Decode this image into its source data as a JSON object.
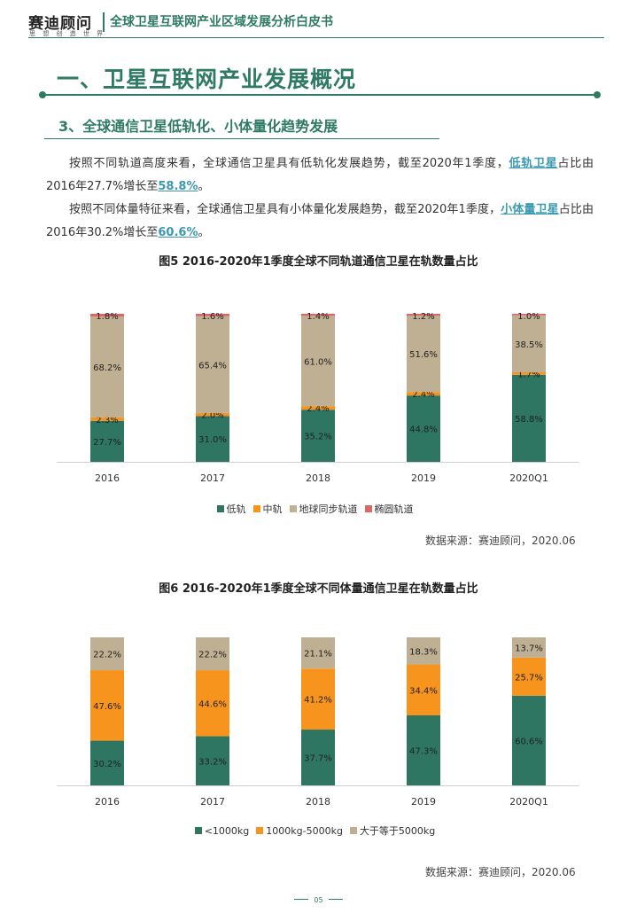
{
  "header": {
    "logo": "赛迪顾问",
    "logo_sub": "思 想 创 造 世 界",
    "doc_title": "全球卫星互联网产业区域发展分析白皮书"
  },
  "section": {
    "title": "一、卫星互联网产业发展概况",
    "subtitle": "3、全球通信卫星低轨化、小体量化趋势发展"
  },
  "paragraphs": [
    {
      "pre": "按照不同轨道高度来看，全球通信卫星具有低轨化发展趋势，截至2020年1季度，",
      "hl1": "低轨卫星",
      "mid": "占比由2016年27.7%增长至",
      "hl2": "58.8%",
      "post": "。"
    },
    {
      "pre": "按照不同体量特征来看，全球通信卫星具有小体量化发展趋势，截至2020年1季度，",
      "hl1": "小体量卫星",
      "mid": "占比由2016年30.2%增长至",
      "hl2": "60.6%",
      "post": "。"
    }
  ],
  "figures": [
    {
      "title": "图5  2016-2020年1季度全球不同轨道通信卫星在轨数量占比",
      "source": "数据来源：赛迪顾问，2020.06"
    },
    {
      "title": "图6  2016-2020年1季度全球不同体量通信卫星在轨数量占比",
      "source": "数据来源：赛迪顾问，2020.06"
    }
  ],
  "page_number": "05",
  "chart_data": [
    {
      "type": "bar",
      "stacked": true,
      "categories": [
        "2016",
        "2017",
        "2018",
        "2019",
        "2020Q1"
      ],
      "series": [
        {
          "name": "低轨",
          "color": "#2e7562",
          "values": [
            27.7,
            31.0,
            35.2,
            44.8,
            58.8
          ],
          "labels": [
            "27.7%",
            "31.0%",
            "35.2%",
            "44.8%",
            "58.8%"
          ]
        },
        {
          "name": "中轨",
          "color": "#f7941d",
          "values": [
            2.3,
            2.0,
            2.4,
            2.4,
            1.7
          ],
          "labels": [
            "2.3%",
            "2.0%",
            "2.4%",
            "2.4%",
            "1.7%"
          ]
        },
        {
          "name": "地球同步轨道",
          "color": "#bfb094",
          "values": [
            68.2,
            65.4,
            61.0,
            51.6,
            38.5
          ],
          "labels": [
            "68.2%",
            "65.4%",
            "61.0%",
            "51.6%",
            "38.5%"
          ]
        },
        {
          "name": "椭圆轨道",
          "color": "#e06666",
          "values": [
            1.8,
            1.6,
            1.4,
            1.2,
            1.0
          ],
          "labels": [
            "1.8%",
            "1.6%",
            "1.4%",
            "1.2%",
            "1.0%"
          ]
        }
      ],
      "ylim": [
        0,
        100
      ],
      "legend": "bottom"
    },
    {
      "type": "bar",
      "stacked": true,
      "categories": [
        "2016",
        "2017",
        "2018",
        "2019",
        "2020Q1"
      ],
      "series": [
        {
          "name": "<1000kg",
          "color": "#2e7562",
          "values": [
            30.2,
            33.2,
            37.7,
            47.3,
            60.6
          ],
          "labels": [
            "30.2%",
            "33.2%",
            "37.7%",
            "47.3%",
            "60.6%"
          ]
        },
        {
          "name": "1000kg-5000kg",
          "color": "#f7941d",
          "values": [
            47.6,
            44.6,
            41.2,
            34.4,
            25.7
          ],
          "labels": [
            "47.6%",
            "44.6%",
            "41.2%",
            "34.4%",
            "25.7%"
          ]
        },
        {
          "name": "大于等于5000kg",
          "color": "#bfb094",
          "values": [
            22.2,
            22.2,
            21.1,
            18.3,
            13.7
          ],
          "labels": [
            "22.2%",
            "22.2%",
            "21.1%",
            "18.3%",
            "13.7%"
          ]
        }
      ],
      "ylim": [
        0,
        100
      ],
      "legend": "bottom"
    }
  ]
}
